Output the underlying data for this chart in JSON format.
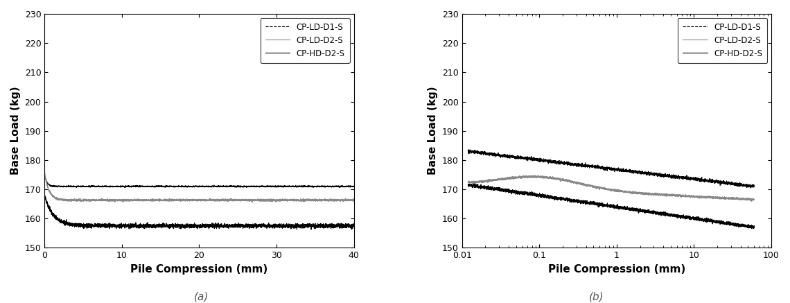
{
  "title_a": "(a)",
  "title_b": "(b)",
  "xlabel": "Pile Compression (mm)",
  "ylabel": "Base Load (kg)",
  "ylim": [
    150,
    230
  ],
  "yticks": [
    150,
    160,
    170,
    180,
    190,
    200,
    210,
    220,
    230
  ],
  "xlim_a": [
    0,
    40
  ],
  "xticks_a": [
    0,
    10,
    20,
    30,
    40
  ],
  "xlim_b_log": [
    0.01,
    100
  ],
  "legend_labels": [
    "CP-LD-D1-S",
    "CP-LD-D2-S",
    "CP-HD-D2-S"
  ],
  "gray_color": "#888888",
  "black_color": "#000000",
  "noise_seed": 10
}
